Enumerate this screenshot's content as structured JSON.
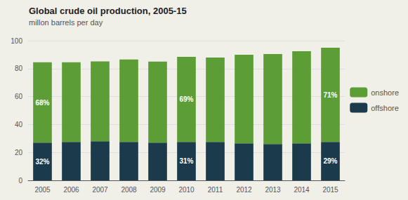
{
  "chart_data": {
    "type": "bar",
    "stacked": true,
    "title": "Global crude oil production, 2005-15",
    "subtitle": "millon barrels per day",
    "categories": [
      "2005",
      "2006",
      "2007",
      "2008",
      "2009",
      "2010",
      "2011",
      "2012",
      "2013",
      "2014",
      "2015"
    ],
    "series": [
      {
        "name": "offshore",
        "color": "#1b3a4b",
        "values": [
          27.0,
          27.5,
          28.0,
          27.5,
          27.0,
          27.5,
          27.5,
          26.5,
          26.0,
          26.5,
          27.5
        ]
      },
      {
        "name": "onshore",
        "color": "#5c9e35",
        "values": [
          57.5,
          57.0,
          57.2,
          59.0,
          58.0,
          61.0,
          60.5,
          63.5,
          64.5,
          66.0,
          67.5
        ]
      }
    ],
    "annotations": [
      {
        "text": "32%",
        "category": "2005",
        "series": "offshore"
      },
      {
        "text": "68%",
        "category": "2005",
        "series": "onshore"
      },
      {
        "text": "31%",
        "category": "2010",
        "series": "offshore"
      },
      {
        "text": "69%",
        "category": "2010",
        "series": "onshore"
      },
      {
        "text": "29%",
        "category": "2015",
        "series": "offshore"
      },
      {
        "text": "71%",
        "category": "2015",
        "series": "onshore"
      }
    ],
    "ylim": [
      0,
      100
    ],
    "yticks": [
      0,
      20,
      40,
      60,
      80,
      100
    ],
    "grid": true,
    "legend": "right"
  }
}
